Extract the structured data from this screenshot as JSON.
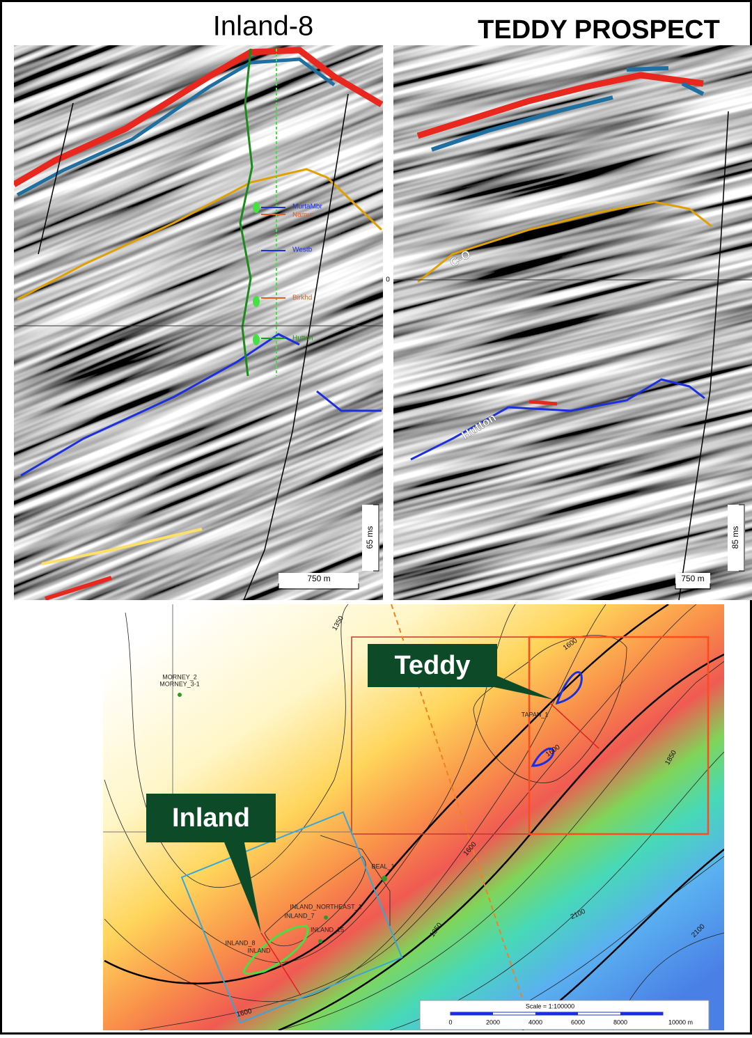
{
  "header": {
    "left_title": "Inland-8",
    "right_title": "TEDDY PROSPECT"
  },
  "left_section": {
    "well_tops": [
      "MurtaMbr",
      "Namur",
      "Westb",
      "Birkhd",
      "Hutton"
    ],
    "time_scale": "65 ms",
    "distance_scale": "750 m"
  },
  "right_section": {
    "horizons": [
      "C-O",
      "Hutton"
    ],
    "time_scale": "85 ms",
    "distance_scale": "750 m",
    "time_zero": "0"
  },
  "map": {
    "callouts": [
      "Teddy",
      "Inland"
    ],
    "wells": [
      "MORNEY_2",
      "MORNEY_3-1",
      "TAPAN_1",
      "BEAL_1",
      "INLAND_NORTHEAST_1",
      "INLAND_7",
      "INLAND_15",
      "INLAND_8",
      "INLAND"
    ],
    "contour_labels": [
      "1350",
      "1600",
      "1600",
      "1600",
      "1600",
      "1850",
      "1850",
      "2100",
      "2100"
    ],
    "scale": {
      "title": "Scale = 1:100000",
      "labels": [
        "0",
        "2000",
        "4000",
        "6000",
        "8000",
        "10000 m"
      ]
    }
  }
}
